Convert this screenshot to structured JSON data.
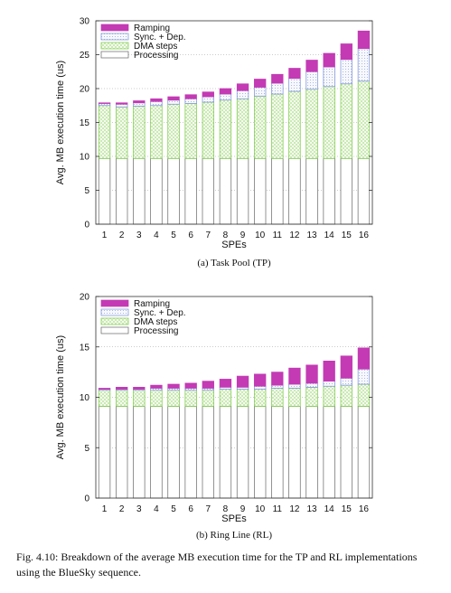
{
  "colors": {
    "processing": "#ffffff",
    "dma": "#7ac943",
    "sync": "#7a8fd6",
    "ramping": "#c33ab4",
    "grid": "#999999",
    "axis": "#333333"
  },
  "chart_data": [
    {
      "type": "bar",
      "stacked": true,
      "caption": "(a) Task Pool (TP)",
      "xlabel": "SPEs",
      "ylabel": "Avg. MB execution time (us)",
      "ylim": [
        0,
        30
      ],
      "yticks": [
        0,
        5,
        10,
        15,
        20,
        25,
        30
      ],
      "grid": "horizontal dotted",
      "legend_position": "top-left",
      "categories": [
        "1",
        "2",
        "3",
        "4",
        "5",
        "6",
        "7",
        "8",
        "9",
        "10",
        "11",
        "12",
        "13",
        "14",
        "15",
        "16"
      ],
      "series": [
        {
          "name": "Processing",
          "key": "processing",
          "values": [
            9.7,
            9.7,
            9.7,
            9.7,
            9.7,
            9.7,
            9.7,
            9.7,
            9.7,
            9.7,
            9.7,
            9.7,
            9.7,
            9.7,
            9.7,
            9.7
          ]
        },
        {
          "name": "DMA steps",
          "key": "dma",
          "values": [
            7.8,
            7.6,
            7.7,
            7.8,
            8.0,
            8.1,
            8.3,
            8.6,
            8.8,
            9.2,
            9.5,
            9.9,
            10.2,
            10.6,
            11.0,
            11.4
          ]
        },
        {
          "name": "Sync. + Dep.",
          "key": "sync",
          "values": [
            0.3,
            0.4,
            0.5,
            0.6,
            0.6,
            0.7,
            0.8,
            0.9,
            1.2,
            1.3,
            1.6,
            1.9,
            2.6,
            2.9,
            3.6,
            4.8
          ]
        },
        {
          "name": "Ramping",
          "key": "ramping",
          "values": [
            0.1,
            0.2,
            0.3,
            0.4,
            0.5,
            0.6,
            0.7,
            0.8,
            1.0,
            1.2,
            1.3,
            1.5,
            1.7,
            2.0,
            2.3,
            2.6
          ]
        }
      ]
    },
    {
      "type": "bar",
      "stacked": true,
      "caption": "(b) Ring Line (RL)",
      "xlabel": "SPEs",
      "ylabel": "Avg. MB execution time (us)",
      "ylim": [
        0,
        20
      ],
      "yticks": [
        0,
        5,
        10,
        15,
        20
      ],
      "grid": "horizontal dotted",
      "legend_position": "top-left",
      "categories": [
        "1",
        "2",
        "3",
        "4",
        "5",
        "6",
        "7",
        "8",
        "9",
        "10",
        "11",
        "12",
        "13",
        "14",
        "15",
        "16"
      ],
      "series": [
        {
          "name": "Processing",
          "key": "processing",
          "values": [
            9.1,
            9.1,
            9.1,
            9.1,
            9.1,
            9.1,
            9.1,
            9.1,
            9.1,
            9.1,
            9.1,
            9.1,
            9.1,
            9.1,
            9.1,
            9.1
          ]
        },
        {
          "name": "DMA steps",
          "key": "dma",
          "values": [
            1.6,
            1.6,
            1.6,
            1.6,
            1.6,
            1.6,
            1.6,
            1.7,
            1.7,
            1.7,
            1.8,
            1.8,
            1.9,
            2.0,
            2.1,
            2.2
          ]
        },
        {
          "name": "Sync. + Dep.",
          "key": "sync",
          "values": [
            0.1,
            0.1,
            0.1,
            0.2,
            0.2,
            0.2,
            0.2,
            0.2,
            0.2,
            0.3,
            0.3,
            0.4,
            0.4,
            0.5,
            0.7,
            1.5
          ]
        },
        {
          "name": "Ramping",
          "key": "ramping",
          "values": [
            0.1,
            0.2,
            0.2,
            0.3,
            0.4,
            0.5,
            0.7,
            0.8,
            1.1,
            1.2,
            1.3,
            1.6,
            1.8,
            2.0,
            2.2,
            2.1
          ]
        }
      ]
    }
  ],
  "figure_caption": "Fig. 4.10: Breakdown of the average MB execution time for the TP and RL implementations using the BlueSky sequence."
}
